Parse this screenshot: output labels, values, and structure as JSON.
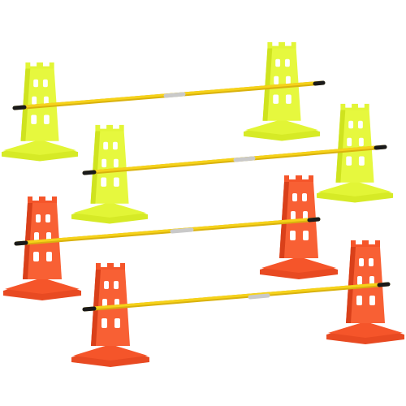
{
  "scene": {
    "colors": {
      "background": "#ffffff",
      "yellow_cone": "#e2f536",
      "yellow_cone_shade": "#c9de1f",
      "orange_cone": "#f5552a",
      "orange_cone_shade": "#d9401a",
      "pole": "#f6d21a",
      "pole_shade": "#d9b20e",
      "pole_tip": "#1a1a1a",
      "coupler": "#c9c9c9"
    },
    "hurdles": [
      {
        "id": "back-yellow-hurdle",
        "cone_color": "yellow",
        "cone_count": 2
      },
      {
        "id": "middle-yellow-hurdle",
        "cone_color": "yellow",
        "cone_count": 2
      },
      {
        "id": "middle-orange-hurdle",
        "cone_color": "orange",
        "cone_count": 2
      },
      {
        "id": "front-orange-hurdle",
        "cone_color": "orange",
        "cone_count": 2
      }
    ]
  }
}
